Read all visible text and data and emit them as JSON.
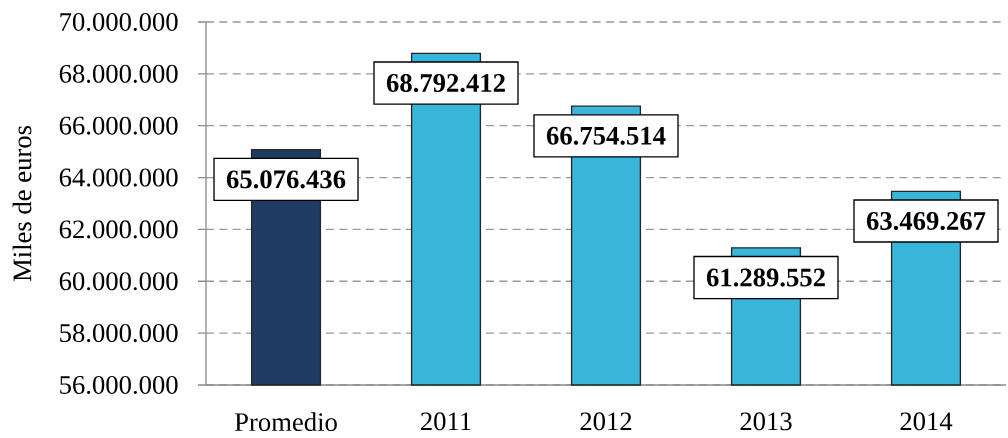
{
  "chart_data": {
    "type": "bar",
    "ylabel": "Miles de euros",
    "categories": [
      "Promedio",
      "2011",
      "2012",
      "2013",
      "2014"
    ],
    "values": [
      65076436,
      68792412,
      66754514,
      61289552,
      63469267
    ],
    "colors": [
      "#1f3b63",
      "#3ab6da",
      "#3ab6da",
      "#3ab6da",
      "#3ab6da"
    ],
    "value_labels": [
      "65.076.436",
      "68.792.412",
      "66.754.514",
      "61.289.552",
      "63.469.267"
    ],
    "ylim": [
      56000000,
      70000000
    ],
    "yticks": [
      {
        "value": 56000000,
        "label": "56.000.000"
      },
      {
        "value": 58000000,
        "label": "58.000.000"
      },
      {
        "value": 60000000,
        "label": "60.000.000"
      },
      {
        "value": 62000000,
        "label": "62.000.000"
      },
      {
        "value": 64000000,
        "label": "64.000.000"
      },
      {
        "value": 66000000,
        "label": "66.000.000"
      },
      {
        "value": 68000000,
        "label": "68.000.000"
      },
      {
        "value": 70000000,
        "label": "70.000.000"
      }
    ],
    "grid": "y"
  }
}
